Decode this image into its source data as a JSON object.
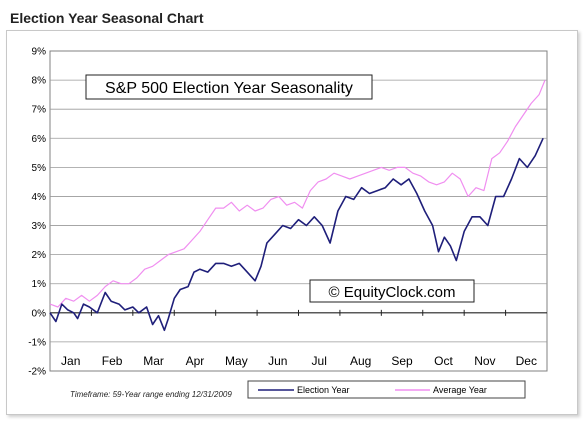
{
  "page": {
    "title": "Election Year Seasonal Chart"
  },
  "chart_data": {
    "type": "line",
    "title": "S&P 500 Election Year Seasonality",
    "watermark": "© EquityClock.com",
    "footnote": "Timeframe: 59-Year range ending 12/31/2009",
    "xlabel": "",
    "ylabel": "",
    "ylim": [
      -2,
      9
    ],
    "y_ticks": [
      "-2%",
      "-1%",
      "0%",
      "1%",
      "2%",
      "3%",
      "4%",
      "5%",
      "6%",
      "7%",
      "8%",
      "9%"
    ],
    "months": [
      "Jan",
      "Feb",
      "Mar",
      "Apr",
      "May",
      "Jun",
      "Jul",
      "Aug",
      "Sep",
      "Oct",
      "Nov",
      "Dec"
    ],
    "grid": true,
    "legend_position": "bottom",
    "x_unit": "trading day",
    "x_range": [
      0,
      252
    ],
    "series": [
      {
        "name": "Election Year",
        "color": "#1f1f7a",
        "x": [
          0,
          3,
          6,
          9,
          12,
          14,
          17,
          20,
          24,
          28,
          31,
          35,
          38,
          42,
          45,
          49,
          52,
          55,
          58,
          60,
          63,
          66,
          70,
          73,
          76,
          80,
          84,
          88,
          92,
          96,
          100,
          104,
          107,
          110,
          114,
          118,
          122,
          126,
          130,
          134,
          138,
          142,
          146,
          150,
          154,
          158,
          162,
          166,
          170,
          174,
          178,
          182,
          186,
          190,
          194,
          197,
          200,
          203,
          206,
          210,
          214,
          218,
          222,
          226,
          230,
          234,
          238,
          242,
          246,
          250
        ],
        "y": [
          0.0,
          -0.3,
          0.3,
          0.1,
          0.0,
          -0.2,
          0.3,
          0.2,
          0.0,
          0.7,
          0.4,
          0.3,
          0.1,
          0.2,
          0.0,
          0.2,
          -0.4,
          -0.1,
          -0.6,
          -0.2,
          0.5,
          0.8,
          0.9,
          1.4,
          1.5,
          1.4,
          1.7,
          1.7,
          1.6,
          1.7,
          1.4,
          1.1,
          1.6,
          2.4,
          2.7,
          3.0,
          2.9,
          3.2,
          3.0,
          3.3,
          3.0,
          2.4,
          3.5,
          4.0,
          3.9,
          4.3,
          4.1,
          4.2,
          4.3,
          4.6,
          4.4,
          4.6,
          4.1,
          3.5,
          3.0,
          2.1,
          2.6,
          2.3,
          1.8,
          2.8,
          3.3,
          3.3,
          3.0,
          4.0,
          4.0,
          4.6,
          5.3,
          5.0,
          5.4,
          6.0
        ]
      },
      {
        "name": "Average Year",
        "color": "#f08ef0",
        "x": [
          0,
          4,
          8,
          12,
          16,
          20,
          24,
          28,
          32,
          36,
          40,
          44,
          48,
          52,
          56,
          60,
          64,
          68,
          72,
          76,
          80,
          84,
          88,
          92,
          96,
          100,
          104,
          108,
          112,
          116,
          120,
          124,
          128,
          132,
          136,
          140,
          144,
          148,
          152,
          156,
          160,
          164,
          168,
          172,
          176,
          180,
          184,
          188,
          192,
          196,
          200,
          204,
          208,
          212,
          216,
          220,
          224,
          228,
          232,
          236,
          240,
          244,
          248,
          251
        ],
        "y": [
          0.3,
          0.2,
          0.5,
          0.4,
          0.6,
          0.4,
          0.6,
          0.9,
          1.1,
          1.0,
          1.0,
          1.2,
          1.5,
          1.6,
          1.8,
          2.0,
          2.1,
          2.2,
          2.5,
          2.8,
          3.2,
          3.6,
          3.6,
          3.8,
          3.5,
          3.7,
          3.5,
          3.6,
          3.9,
          4.0,
          3.7,
          3.8,
          3.6,
          4.2,
          4.5,
          4.6,
          4.8,
          4.7,
          4.6,
          4.7,
          4.8,
          4.9,
          5.0,
          4.9,
          5.0,
          5.0,
          4.8,
          4.7,
          4.5,
          4.4,
          4.5,
          4.8,
          4.6,
          4.0,
          4.3,
          4.2,
          5.3,
          5.5,
          5.9,
          6.4,
          6.8,
          7.2,
          7.5,
          8.0
        ]
      }
    ]
  }
}
